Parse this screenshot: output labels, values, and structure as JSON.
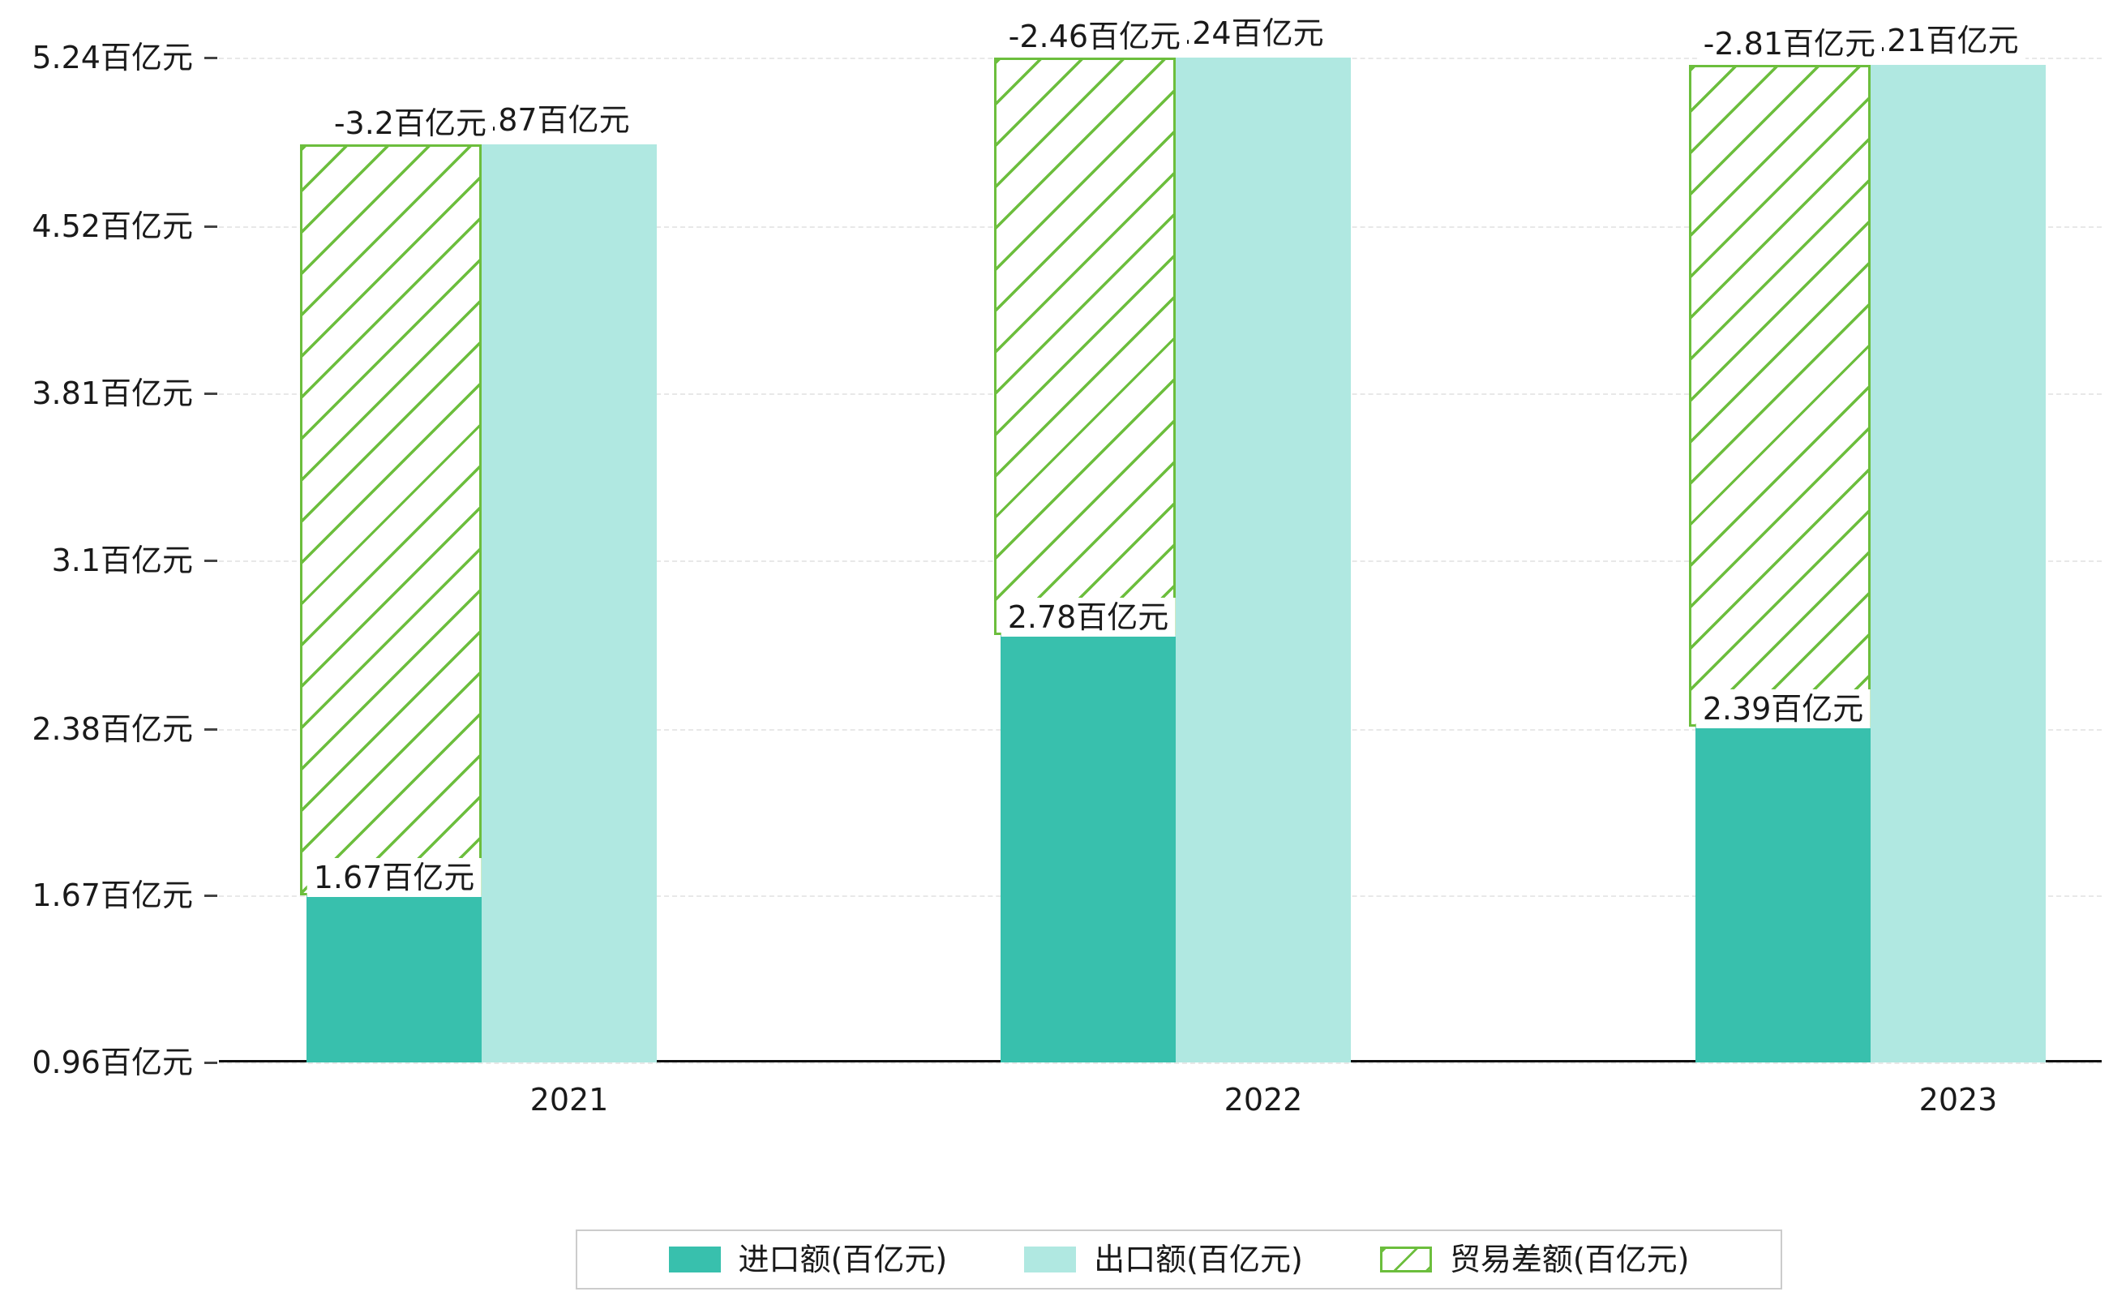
{
  "chart_data": {
    "type": "bar",
    "title": "",
    "xlabel": "",
    "ylabel": "",
    "categories": [
      "2021",
      "2022",
      "2023"
    ],
    "series": [
      {
        "name": "进口额(百亿元)",
        "type": "bar",
        "color": "#38c0ad",
        "values": [
          1.67,
          2.78,
          2.39
        ],
        "labels": [
          "1.67百亿元",
          "2.78百亿元",
          "2.39百亿元"
        ]
      },
      {
        "name": "出口额(百亿元)",
        "type": "bar",
        "color": "#b0e8e1",
        "values": [
          4.87,
          5.24,
          5.21
        ],
        "labels": [
          "4.87百亿元",
          "5.24百亿元",
          "5.21百亿元"
        ]
      },
      {
        "name": "贸易差额(百亿元)",
        "type": "bar",
        "style": "diagonal-hatch",
        "color": "#6cbe3d",
        "values": [
          -3.2,
          -2.46,
          -2.81
        ],
        "labels": [
          "-3.2百亿元",
          "-2.46百亿元",
          "-2.81百亿元"
        ],
        "spans": [
          [
            1.67,
            4.87
          ],
          [
            2.78,
            5.24
          ],
          [
            2.39,
            5.21
          ]
        ]
      }
    ],
    "ylim": [
      0.96,
      5.24
    ],
    "yticks": [
      0.96,
      1.67,
      2.38,
      3.1,
      3.81,
      4.52,
      5.24
    ],
    "ytick_labels": [
      "0.96百亿元",
      "1.67百亿元",
      "2.38百亿元",
      "3.1百亿元",
      "3.81百亿元",
      "4.52百亿元",
      "5.24百亿元"
    ],
    "grid": "horizontal-dashed",
    "legend_position": "bottom",
    "colors": {
      "import": "#38c0ad",
      "export": "#b0e8e1",
      "balance": "#6cbe3d",
      "axis": "#111111",
      "grid": "#e8e8e8",
      "legend_border": "#cccccc",
      "background": "#ffffff"
    }
  }
}
